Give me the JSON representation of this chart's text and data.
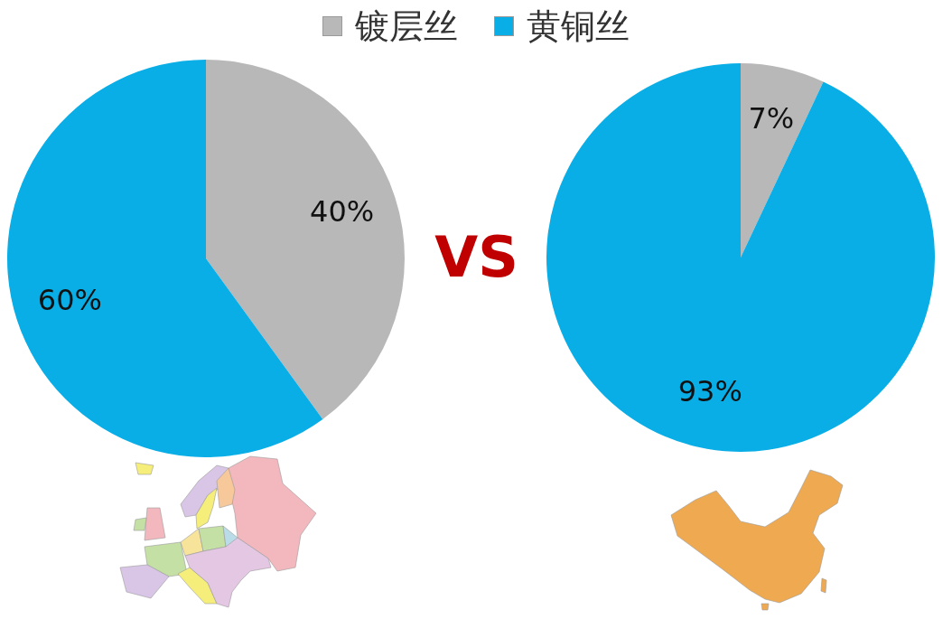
{
  "chart_data": [
    {
      "type": "pie",
      "categories": [
        "镀层丝",
        "黄铜丝"
      ],
      "values": [
        40,
        60
      ],
      "colors": [
        "#b8b8b8",
        "#0aaee6"
      ],
      "value_labels": [
        "40%",
        "60%"
      ],
      "legend": "top",
      "annotations": [
        "VS"
      ]
    },
    {
      "type": "pie",
      "categories": [
        null,
        null
      ],
      "values": [
        7,
        93
      ],
      "colors": [
        "#b8b8b8",
        "#0aaee6"
      ],
      "value_labels": [
        "7%",
        "93%"
      ]
    }
  ]
}
